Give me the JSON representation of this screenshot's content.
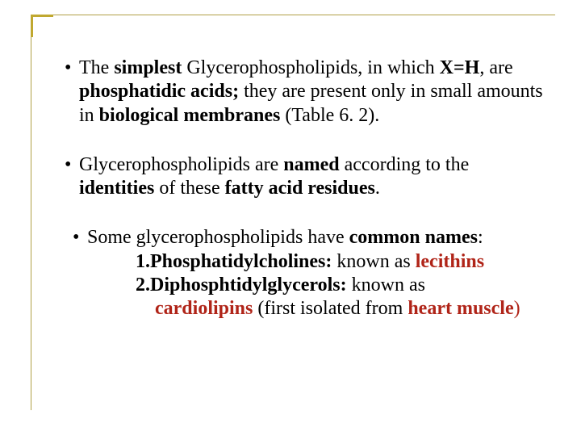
{
  "colors": {
    "text": "#000000",
    "accent_red": "#b02418",
    "frame": "#b0a045",
    "corner": "#c0a830",
    "background": "#ffffff"
  },
  "typography": {
    "font_family": "Times New Roman",
    "body_fontsize_pt": 18,
    "line_height": 1.22
  },
  "b1": {
    "t1": "The ",
    "t2": "simplest",
    "t3": " Glycerophospholipids, in which ",
    "t4": "X=H",
    "t5": ", are ",
    "t6": "phosphatidic acids;",
    "t7": " they are present only in small amounts in ",
    "t8": "biological membranes",
    "t9": " (Table 6. 2)."
  },
  "b2": {
    "t1": "Glycerophospholipids are ",
    "t2": "named",
    "t3": " according to the ",
    "t4": "identities",
    "t5": " of these ",
    "t6": "fatty acid residues",
    "t7": "."
  },
  "b3": {
    "t1": "Some glycerophospholipids have ",
    "t2": "common names",
    "t3": ":",
    "s1n": "1.",
    "s1a": "Phosphatidylcholines:",
    "s1b": " known as ",
    "s1c": "lecithins",
    "s2n": "2.",
    "s2a": "Diphosphtidylglycerols:",
    "s2b": " known as ",
    "s2c": "cardiolipins",
    "s2d": " (first isolated from ",
    "s2e": "heart muscle",
    "s2f": ")"
  }
}
